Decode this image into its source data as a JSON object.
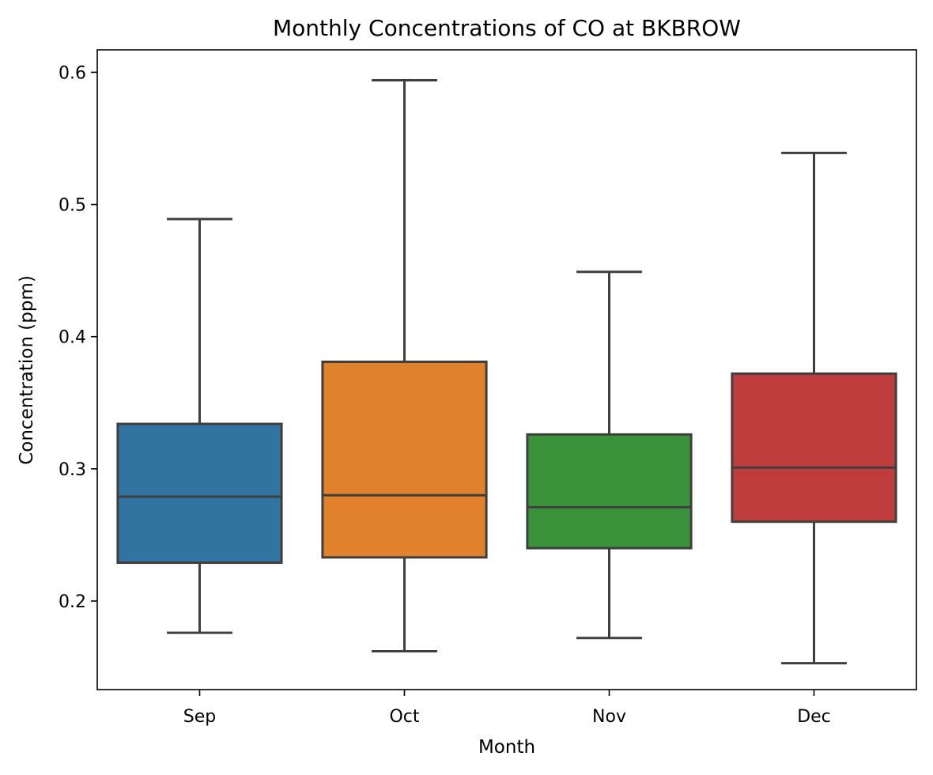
{
  "chart_data": {
    "type": "box",
    "title": "Monthly Concentrations of CO at BKBROW",
    "xlabel": "Month",
    "ylabel": "Concentration (ppm)",
    "ylim": [
      0.133,
      0.617
    ],
    "yticks": [
      0.2,
      0.3,
      0.4,
      0.5,
      0.6
    ],
    "ytick_labels": [
      "0.2",
      "0.3",
      "0.4",
      "0.5",
      "0.6"
    ],
    "grid": false,
    "legend": "none",
    "categories": [
      "Sep",
      "Oct",
      "Nov",
      "Dec"
    ],
    "boxes": [
      {
        "category": "Sep",
        "color": "#3274a1",
        "whisker_low": 0.176,
        "q1": 0.229,
        "median": 0.279,
        "q3": 0.334,
        "whisker_high": 0.489
      },
      {
        "category": "Oct",
        "color": "#e1812c",
        "whisker_low": 0.162,
        "q1": 0.233,
        "median": 0.28,
        "q3": 0.381,
        "whisker_high": 0.594
      },
      {
        "category": "Nov",
        "color": "#3a923a",
        "whisker_low": 0.172,
        "q1": 0.24,
        "median": 0.271,
        "q3": 0.326,
        "whisker_high": 0.449
      },
      {
        "category": "Dec",
        "color": "#c03d3e",
        "whisker_low": 0.153,
        "q1": 0.26,
        "median": 0.301,
        "q3": 0.372,
        "whisker_high": 0.539
      }
    ]
  }
}
